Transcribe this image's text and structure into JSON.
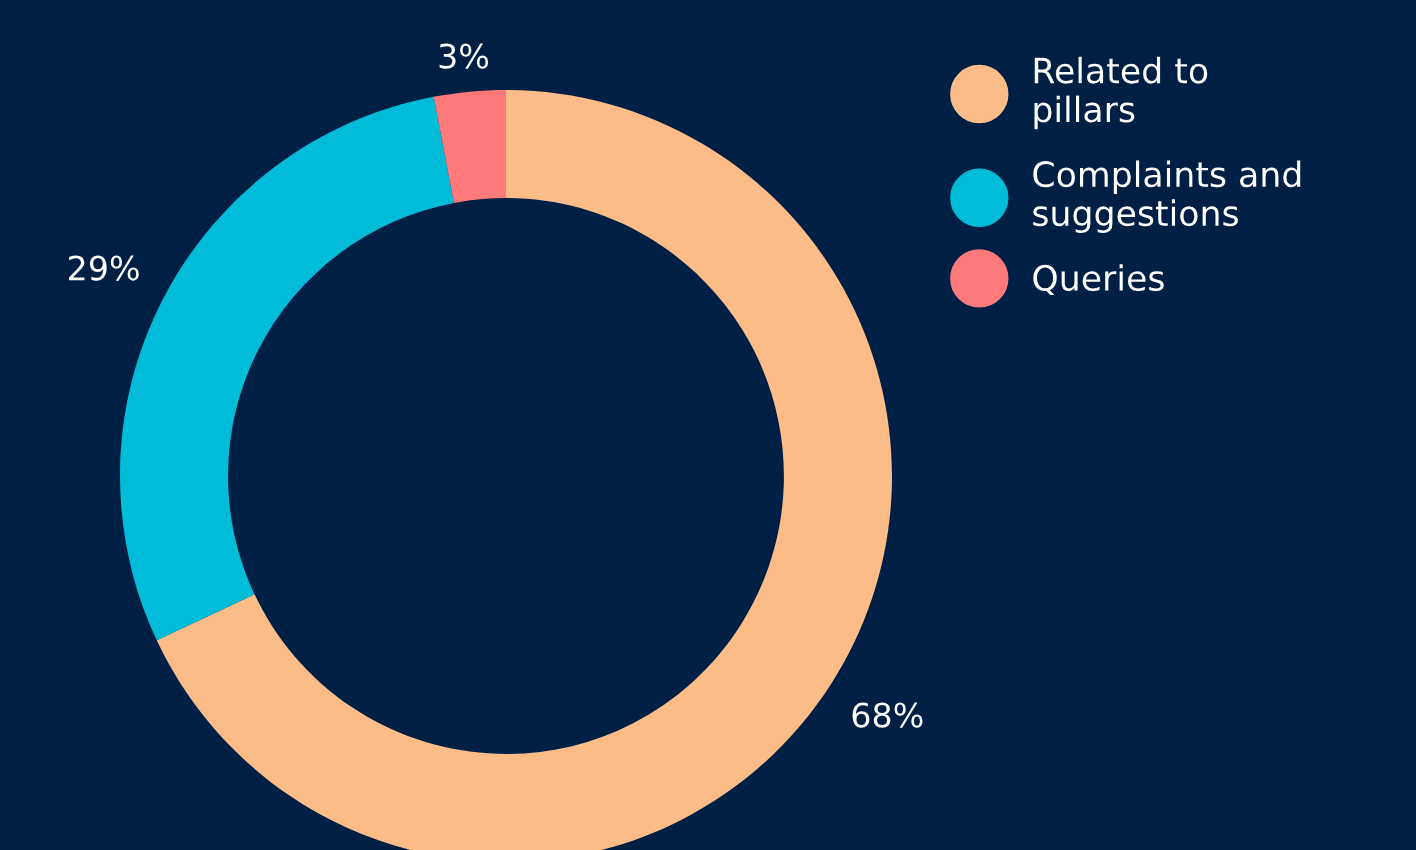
{
  "chart_data": {
    "type": "donut",
    "categories": [
      "Related to pillars",
      "Complaints and suggestions",
      "Queries"
    ],
    "values": [
      68,
      29,
      3
    ],
    "colors": [
      "#fbbc88",
      "#00bcd9",
      "#fe7a7a"
    ],
    "value_labels": [
      "68%",
      "29%",
      "3%"
    ],
    "legend": "top right"
  }
}
